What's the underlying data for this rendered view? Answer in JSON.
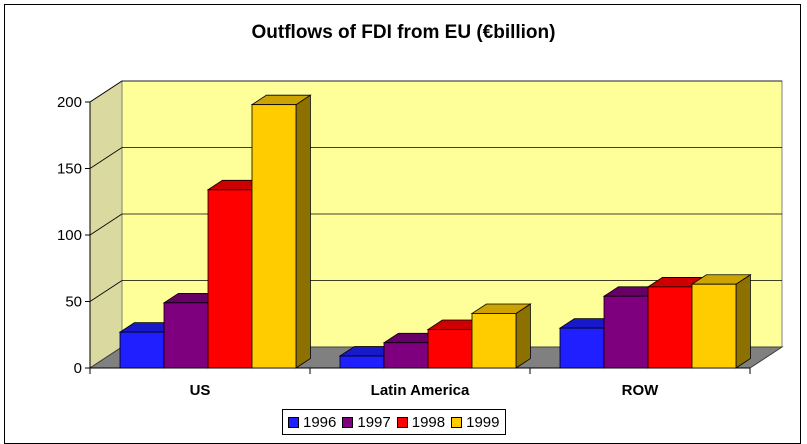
{
  "chart_data": {
    "type": "bar",
    "title": "Outflows of FDI from EU (€billion)",
    "categories": [
      "US",
      "Latin America",
      "ROW"
    ],
    "series": [
      {
        "name": "1996",
        "values": [
          27,
          9,
          30
        ],
        "color": "#1f1fff"
      },
      {
        "name": "1997",
        "values": [
          49,
          19,
          54
        ],
        "color": "#7f007f"
      },
      {
        "name": "1998",
        "values": [
          134,
          29,
          61
        ],
        "color": "#ff0000"
      },
      {
        "name": "1999",
        "values": [
          198,
          41,
          63
        ],
        "color": "#ffcc00"
      }
    ],
    "ylim": [
      0,
      200
    ],
    "yticks": [
      0,
      50,
      100,
      150,
      200
    ],
    "grid": true,
    "wall_color": "#ffff99",
    "floor_color": "#808080",
    "legend_position": "bottom"
  }
}
